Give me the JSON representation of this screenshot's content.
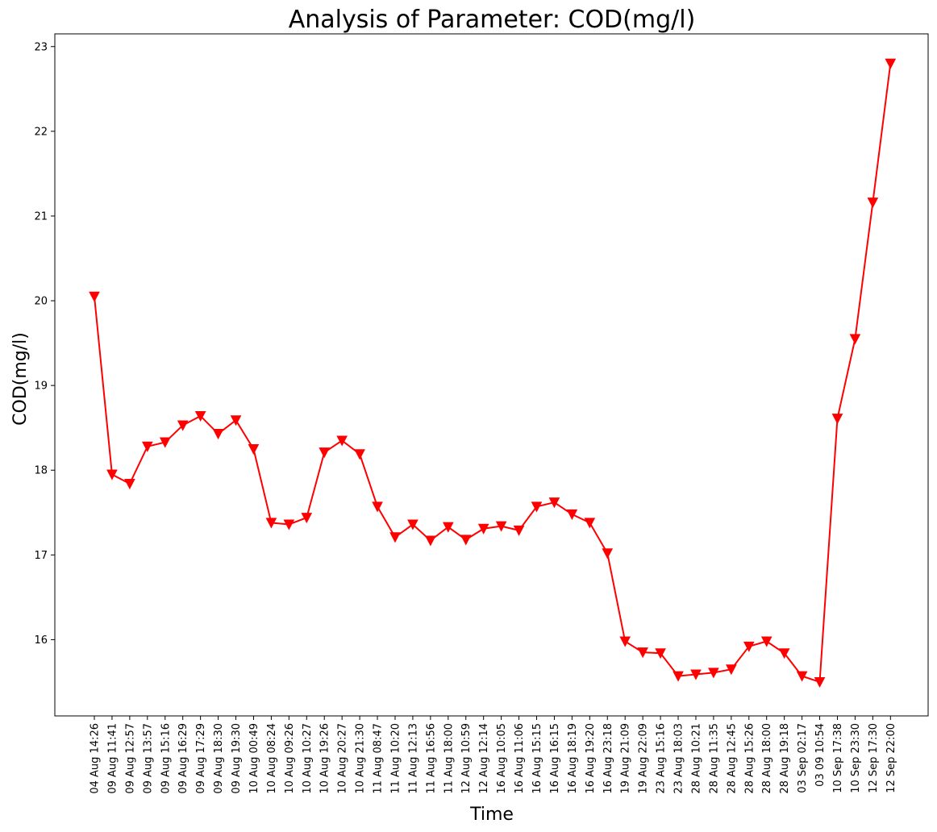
{
  "chart_data": {
    "type": "line",
    "title": "Analysis of Parameter: COD(mg/l)",
    "xlabel": "Time",
    "ylabel": "COD(mg/l)",
    "color": "#ff0000",
    "marker": "triangle-down",
    "ylim": [
      15.1,
      23.15
    ],
    "yticks": [
      16,
      17,
      18,
      19,
      20,
      21,
      22,
      23
    ],
    "grid": false,
    "legend": false,
    "categories": [
      "04 Aug 14:26",
      "09 Aug 11:41",
      "09 Aug 12:57",
      "09 Aug 13:57",
      "09 Aug 15:16",
      "09 Aug 16:29",
      "09 Aug 17:29",
      "09 Aug 18:30",
      "09 Aug 19:30",
      "10 Aug 00:49",
      "10 Aug 08:24",
      "10 Aug 09:26",
      "10 Aug 10:27",
      "10 Aug 19:26",
      "10 Aug 20:27",
      "10 Aug 21:30",
      "11 Aug 08:47",
      "11 Aug 10:20",
      "11 Aug 12:13",
      "11 Aug 16:56",
      "11 Aug 18:00",
      "12 Aug 10:59",
      "12 Aug 12:14",
      "16 Aug 10:05",
      "16 Aug 11:06",
      "16 Aug 15:15",
      "16 Aug 16:15",
      "16 Aug 18:19",
      "16 Aug 19:20",
      "16 Aug 23:18",
      "19 Aug 21:09",
      "19 Aug 22:09",
      "23 Aug 15:16",
      "23 Aug 18:03",
      "28 Aug 10:21",
      "28 Aug 11:35",
      "28 Aug 12:45",
      "28 Aug 15:26",
      "28 Aug 18:00",
      "28 Aug 19:18",
      "03 Sep 02:17",
      "03 09 10:54",
      "10 Sep 17:38",
      "10 Sep 23:30",
      "12 Sep 17:30",
      "12 Sep 22:00"
    ],
    "values": [
      20.05,
      17.95,
      17.84,
      18.28,
      18.33,
      18.53,
      18.64,
      18.43,
      18.59,
      18.25,
      17.38,
      17.36,
      17.44,
      18.21,
      18.35,
      18.19,
      17.57,
      17.21,
      17.36,
      17.17,
      17.33,
      17.18,
      17.31,
      17.34,
      17.29,
      17.57,
      17.62,
      17.48,
      17.38,
      17.02,
      15.98,
      15.85,
      15.84,
      15.57,
      15.59,
      15.61,
      15.65,
      15.92,
      15.98,
      15.84,
      15.57,
      15.5,
      18.61,
      19.55,
      21.16,
      22.8
    ]
  }
}
